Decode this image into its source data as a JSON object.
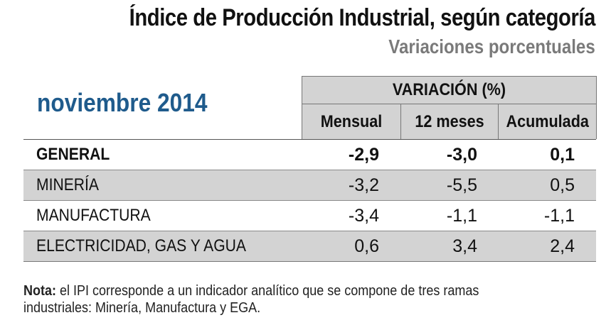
{
  "header": {
    "title": "Índice de Producción Industrial, según categoría",
    "subtitle": "Variaciones porcentuales",
    "period": "noviembre 2014"
  },
  "table": {
    "group_header": "VARIACIÓN (%)",
    "columns": [
      "Mensual",
      "12 meses",
      "Acumulada"
    ],
    "rows": [
      {
        "label": "GENERAL",
        "values": [
          "-2,9",
          "-3,0",
          "0,1"
        ]
      },
      {
        "label": "MINERÍA",
        "values": [
          "-3,2",
          "-5,5",
          "0,5"
        ]
      },
      {
        "label": "MANUFACTURA",
        "values": [
          "-3,4",
          "-1,1",
          "-1,1"
        ]
      },
      {
        "label": "ELECTRICIDAD, GAS Y AGUA",
        "values": [
          "0,6",
          "3,4",
          "2,4"
        ]
      }
    ]
  },
  "note": {
    "label": "Nota:",
    "text": " el IPI corresponde a un indicador analítico que se compone de tres ramas industriales: Minería, Manufactura y EGA."
  },
  "colors": {
    "period_blue": "#1f5b8c",
    "subtitle_gray": "#7a7a7a",
    "band_gray": "#d3d3d3"
  }
}
